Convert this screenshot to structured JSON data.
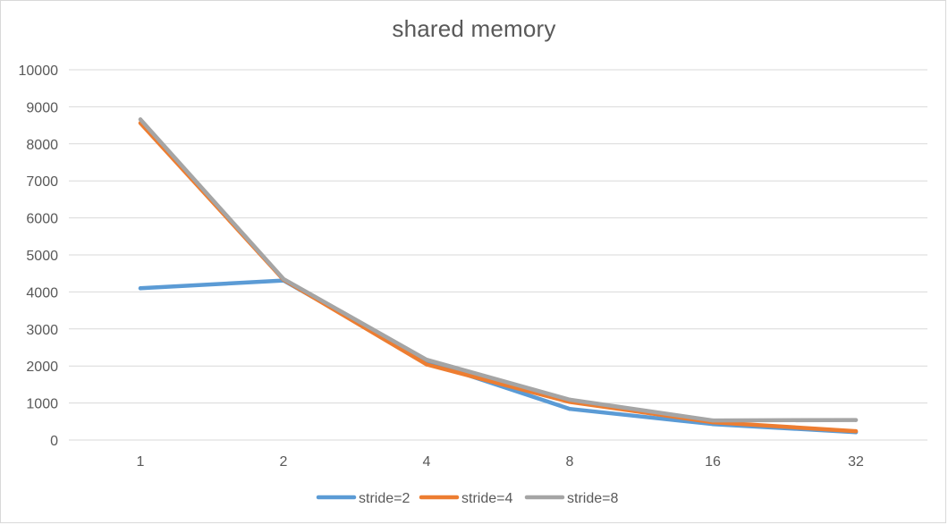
{
  "chart_data": {
    "type": "line",
    "title": "shared memory",
    "xlabel": "",
    "ylabel": "",
    "categories": [
      "1",
      "2",
      "4",
      "8",
      "16",
      "32"
    ],
    "yticks": [
      0,
      1000,
      2000,
      3000,
      4000,
      5000,
      6000,
      7000,
      8000,
      9000,
      10000
    ],
    "ylim": [
      0,
      10000
    ],
    "grid": true,
    "legend_position": "bottom",
    "series": [
      {
        "name": "stride=2",
        "color": "#5b9bd5",
        "values": [
          4100,
          4310,
          2120,
          840,
          430,
          210
        ]
      },
      {
        "name": "stride=4",
        "color": "#ed7d31",
        "values": [
          8560,
          4330,
          2040,
          1030,
          480,
          240
        ]
      },
      {
        "name": "stride=8",
        "color": "#a5a5a5",
        "values": [
          8660,
          4350,
          2170,
          1090,
          530,
          540
        ]
      }
    ]
  }
}
